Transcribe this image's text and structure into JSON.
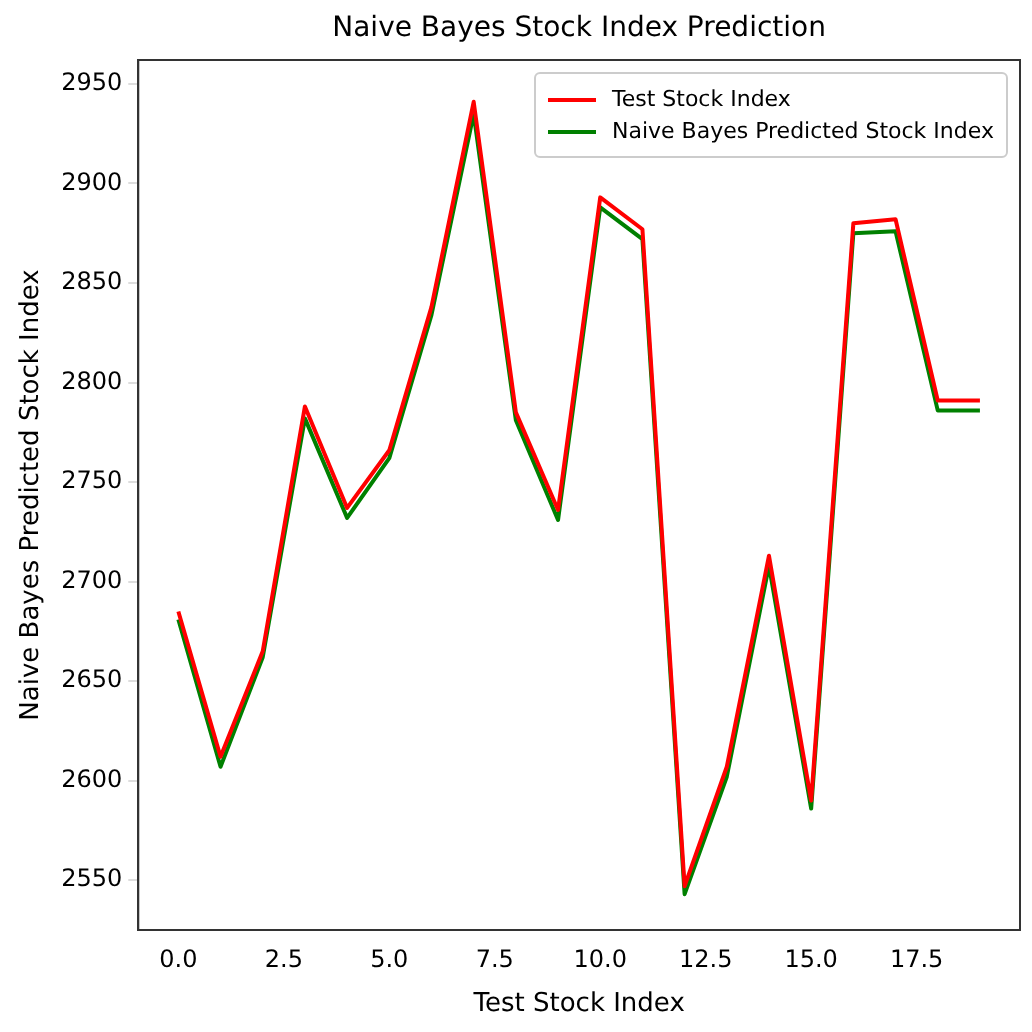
{
  "chart_data": {
    "type": "line",
    "title": "Naive Bayes Stock Index Prediction",
    "xlabel": "Test Stock Index",
    "ylabel": "Naive Bayes Predicted Stock Index",
    "x": [
      0,
      1,
      2,
      3,
      4,
      5,
      6,
      7,
      8,
      9,
      10,
      11,
      12,
      13,
      14,
      15,
      16,
      17,
      18,
      19
    ],
    "series": [
      {
        "name": "Test Stock Index",
        "color": "#ff0000",
        "values": [
          2685,
          2612,
          2665,
          2788,
          2737,
          2766,
          2838,
          2941,
          2785,
          2736,
          2893,
          2877,
          2547,
          2607,
          2713,
          2590,
          2880,
          2882,
          2791,
          2791
        ]
      },
      {
        "name": "Naive Bayes Predicted Stock Index",
        "color": "#008000",
        "values": [
          2681,
          2607,
          2662,
          2782,
          2732,
          2762,
          2834,
          2935,
          2781,
          2731,
          2888,
          2872,
          2543,
          2602,
          2708,
          2586,
          2875,
          2876,
          2786,
          2786
        ]
      }
    ],
    "xlim": [
      -0.95,
      19.95
    ],
    "xticks": [
      {
        "value": 0,
        "label": "0.0"
      },
      {
        "value": 2.5,
        "label": "2.5"
      },
      {
        "value": 5,
        "label": "5.0"
      },
      {
        "value": 7.5,
        "label": "7.5"
      },
      {
        "value": 10,
        "label": "10.0"
      },
      {
        "value": 12.5,
        "label": "12.5"
      },
      {
        "value": 15,
        "label": "15.0"
      },
      {
        "value": 17.5,
        "label": "17.5"
      }
    ],
    "ylim": [
      2525,
      2962
    ],
    "yticks": [
      2550,
      2600,
      2650,
      2700,
      2750,
      2800,
      2850,
      2900,
      2950
    ],
    "legend": "top right",
    "grid": false,
    "marker": "none",
    "line_style": "solid"
  }
}
